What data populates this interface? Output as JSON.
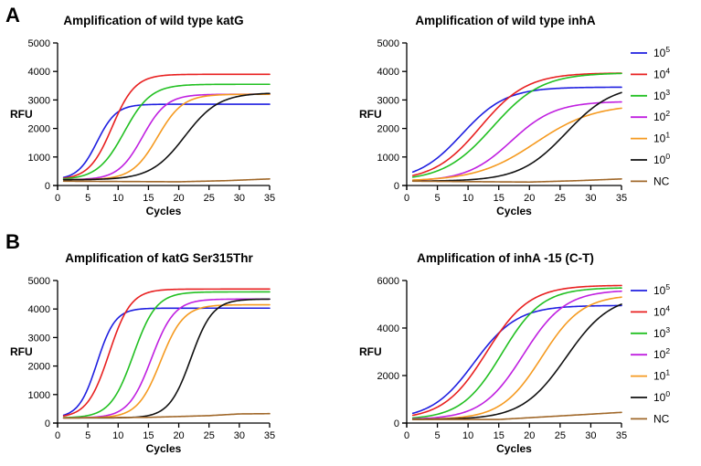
{
  "panel_labels": [
    "A",
    "B"
  ],
  "legend": {
    "entries": [
      {
        "base": "10",
        "exp": "5",
        "color": "#1f1fe0"
      },
      {
        "base": "10",
        "exp": "4",
        "color": "#e82020"
      },
      {
        "base": "10",
        "exp": "3",
        "color": "#22c022"
      },
      {
        "base": "10",
        "exp": "2",
        "color": "#c020e0"
      },
      {
        "base": "10",
        "exp": "1",
        "color": "#f59a20"
      },
      {
        "base": "10",
        "exp": "0",
        "color": "#111111"
      },
      {
        "base": "NC",
        "exp": "",
        "color": "#a0682a"
      }
    ]
  },
  "chart_data": [
    {
      "type": "line",
      "title": "Amplification of wild type katG",
      "xlabel": "Cycles",
      "ylabel": "RFU",
      "xlim": [
        0,
        35
      ],
      "ylim": [
        0,
        5000
      ],
      "xticks": [
        0,
        5,
        10,
        15,
        20,
        25,
        30,
        35
      ],
      "yticks": [
        0,
        1000,
        2000,
        3000,
        4000,
        5000
      ],
      "x_start": 1,
      "series": [
        {
          "name": "10^5",
          "color": "#1f1fe0",
          "baseline": 200,
          "plateau": 2850,
          "midpoint": 6.5,
          "slope": 1.6
        },
        {
          "name": "10^4",
          "color": "#e82020",
          "baseline": 200,
          "plateau": 3900,
          "midpoint": 9,
          "slope": 1.9
        },
        {
          "name": "10^3",
          "color": "#22c022",
          "baseline": 200,
          "plateau": 3550,
          "midpoint": 11,
          "slope": 2.2
        },
        {
          "name": "10^2",
          "color": "#c020e0",
          "baseline": 200,
          "plateau": 3200,
          "midpoint": 14,
          "slope": 2.0
        },
        {
          "name": "10^1",
          "color": "#f59a20",
          "baseline": 200,
          "plateau": 3200,
          "midpoint": 16.5,
          "slope": 2.1
        },
        {
          "name": "10^0",
          "color": "#111111",
          "baseline": 200,
          "plateau": 3250,
          "midpoint": 21,
          "slope": 2.8
        },
        {
          "name": "NC",
          "color": "#a0682a",
          "linear": [
            [
              1,
              150
            ],
            [
              20,
              130
            ],
            [
              28,
              170
            ],
            [
              35,
              230
            ]
          ]
        }
      ]
    },
    {
      "type": "line",
      "title": "Amplification of wild type inhA",
      "xlabel": "Cycles",
      "ylabel": "RFU",
      "xlim": [
        0,
        35
      ],
      "ylim": [
        0,
        5000
      ],
      "xticks": [
        0,
        5,
        10,
        15,
        20,
        25,
        30,
        35
      ],
      "yticks": [
        0,
        1000,
        2000,
        3000,
        4000,
        5000
      ],
      "x_start": 1,
      "series": [
        {
          "name": "10^5",
          "color": "#1f1fe0",
          "baseline": 150,
          "plateau": 3450,
          "midpoint": 9,
          "slope": 3.6
        },
        {
          "name": "10^4",
          "color": "#e82020",
          "baseline": 150,
          "plateau": 3950,
          "midpoint": 12,
          "slope": 3.8
        },
        {
          "name": "10^3",
          "color": "#22c022",
          "baseline": 150,
          "plateau": 3950,
          "midpoint": 14,
          "slope": 4.0
        },
        {
          "name": "10^2",
          "color": "#c020e0",
          "baseline": 150,
          "plateau": 2950,
          "midpoint": 17,
          "slope": 3.6
        },
        {
          "name": "10^1",
          "color": "#f59a20",
          "baseline": 150,
          "plateau": 2850,
          "midpoint": 21,
          "slope": 4.8
        },
        {
          "name": "10^0",
          "color": "#111111",
          "baseline": 150,
          "plateau": 3550,
          "midpoint": 26,
          "slope": 3.8
        },
        {
          "name": "NC",
          "color": "#a0682a",
          "linear": [
            [
              1,
              150
            ],
            [
              20,
              120
            ],
            [
              28,
              170
            ],
            [
              35,
              230
            ]
          ]
        }
      ]
    },
    {
      "type": "line",
      "title": "Amplification of katG Ser315Thr",
      "xlabel": "Cycles",
      "ylabel": "RFU",
      "xlim": [
        0,
        35
      ],
      "ylim": [
        0,
        5000
      ],
      "xticks": [
        0,
        5,
        10,
        15,
        20,
        25,
        30,
        35
      ],
      "yticks": [
        0,
        1000,
        2000,
        3000,
        4000,
        5000
      ],
      "x_start": 1,
      "series": [
        {
          "name": "10^5",
          "color": "#1f1fe0",
          "baseline": 180,
          "plateau": 4030,
          "midpoint": 6.5,
          "slope": 1.5
        },
        {
          "name": "10^4",
          "color": "#e82020",
          "baseline": 180,
          "plateau": 4700,
          "midpoint": 8.5,
          "slope": 1.8
        },
        {
          "name": "10^3",
          "color": "#22c022",
          "baseline": 180,
          "plateau": 4600,
          "midpoint": 12.5,
          "slope": 1.9
        },
        {
          "name": "10^2",
          "color": "#c020e0",
          "baseline": 180,
          "plateau": 4350,
          "midpoint": 15.5,
          "slope": 1.9
        },
        {
          "name": "10^1",
          "color": "#f59a20",
          "baseline": 180,
          "plateau": 4150,
          "midpoint": 17,
          "slope": 1.9
        },
        {
          "name": "10^0",
          "color": "#111111",
          "baseline": 180,
          "plateau": 4350,
          "midpoint": 22,
          "slope": 1.8
        },
        {
          "name": "NC",
          "color": "#a0682a",
          "linear": [
            [
              1,
              180
            ],
            [
              15,
              200
            ],
            [
              25,
              260
            ],
            [
              30,
              320
            ],
            [
              35,
              330
            ]
          ]
        }
      ]
    },
    {
      "type": "line",
      "title": "Amplification of inhA -15 (C-T)",
      "xlabel": "Cycles",
      "ylabel": "RFU",
      "xlim": [
        0,
        35
      ],
      "ylim": [
        0,
        6000
      ],
      "xticks": [
        0,
        5,
        10,
        15,
        20,
        25,
        30,
        35
      ],
      "yticks": [
        0,
        2000,
        4000,
        6000
      ],
      "x_start": 1,
      "series": [
        {
          "name": "10^5",
          "color": "#1f1fe0",
          "baseline": 150,
          "plateau": 4950,
          "midpoint": 11,
          "slope": 3.5
        },
        {
          "name": "10^4",
          "color": "#e82020",
          "baseline": 150,
          "plateau": 5800,
          "midpoint": 13,
          "slope": 3.5
        },
        {
          "name": "10^3",
          "color": "#22c022",
          "baseline": 150,
          "plateau": 5700,
          "midpoint": 15.5,
          "slope": 3.3
        },
        {
          "name": "10^2",
          "color": "#c020e0",
          "baseline": 150,
          "plateau": 5600,
          "midpoint": 19,
          "slope": 3.4
        },
        {
          "name": "10^1",
          "color": "#f59a20",
          "baseline": 150,
          "plateau": 5400,
          "midpoint": 22,
          "slope": 3.3
        },
        {
          "name": "10^0",
          "color": "#111111",
          "baseline": 150,
          "plateau": 5400,
          "midpoint": 26,
          "slope": 3.6
        },
        {
          "name": "NC",
          "color": "#a0682a",
          "linear": [
            [
              1,
              150
            ],
            [
              15,
              150
            ],
            [
              25,
              300
            ],
            [
              35,
              450
            ]
          ]
        }
      ]
    }
  ]
}
